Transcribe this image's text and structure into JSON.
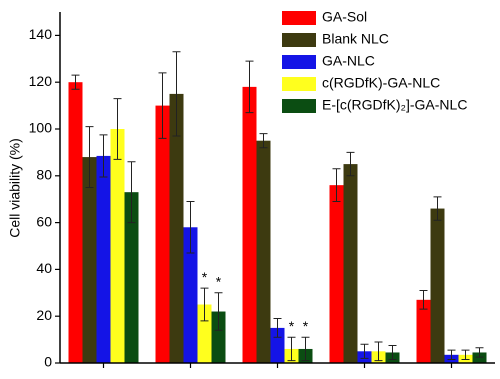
{
  "chart_data": {
    "type": "bar",
    "ylabel": "Cell viability (%)",
    "categories": [
      null,
      null,
      null,
      null,
      null
    ],
    "series": [
      {
        "name": "GA-Sol",
        "color": "#ff0000",
        "values": [
          120,
          110,
          118,
          76,
          27
        ],
        "errors": [
          3,
          14,
          11,
          7,
          4
        ]
      },
      {
        "name": "Blank NLC",
        "color": "#3d3a10",
        "values": [
          88,
          115,
          95,
          85,
          66
        ],
        "errors": [
          13,
          18,
          3,
          5,
          5
        ]
      },
      {
        "name": "GA-NLC",
        "color": "#1414e6",
        "values": [
          88.5,
          58,
          15,
          5,
          3.5
        ],
        "errors": [
          9,
          11,
          4,
          3,
          2
        ]
      },
      {
        "name": "c(RGDfK)-GA-NLC",
        "color": "#ffff1e",
        "values": [
          100,
          25,
          6,
          5,
          3.5
        ],
        "errors": [
          13,
          7,
          5,
          4,
          2
        ]
      },
      {
        "name": "E-[c(RGDfK)₂]-GA-NLC",
        "color": "#0b4d12",
        "values": [
          73,
          22,
          6,
          4.5,
          4.5
        ],
        "errors": [
          13,
          8,
          5,
          3,
          2
        ]
      }
    ],
    "annotations": [
      {
        "text": "*",
        "series": 3,
        "category": 1
      },
      {
        "text": "*",
        "series": 4,
        "category": 1
      },
      {
        "text": "*",
        "series": 3,
        "category": 2
      },
      {
        "text": "*",
        "series": 4,
        "category": 2
      }
    ],
    "ylim": [
      0,
      150
    ],
    "yticks": [
      0,
      20,
      40,
      60,
      80,
      100,
      120,
      140
    ],
    "legend": "top-right"
  }
}
